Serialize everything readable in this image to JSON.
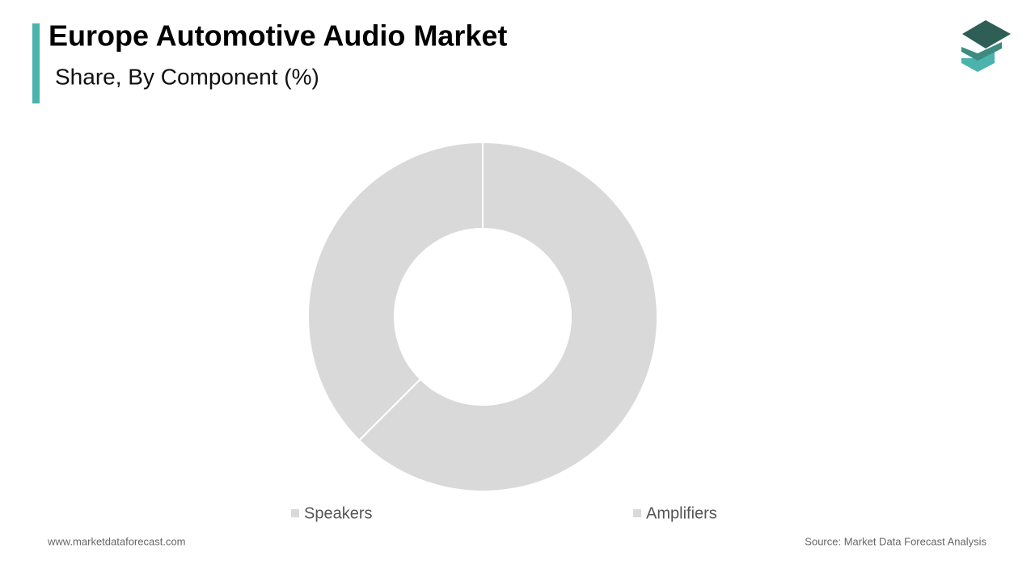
{
  "chart_data": {
    "type": "pie",
    "title": "Europe Automotive Audio Market",
    "subtitle": "Share, By Component  (%)",
    "categories": [
      "Speakers",
      "Amplifiers"
    ],
    "values": [
      62.5,
      37.5
    ],
    "colors": [
      "#d9d9d9",
      "#d9d9d9"
    ],
    "website": "www.marketdataforecast.com",
    "source": "Source: Market Data Forecast Analysis"
  }
}
